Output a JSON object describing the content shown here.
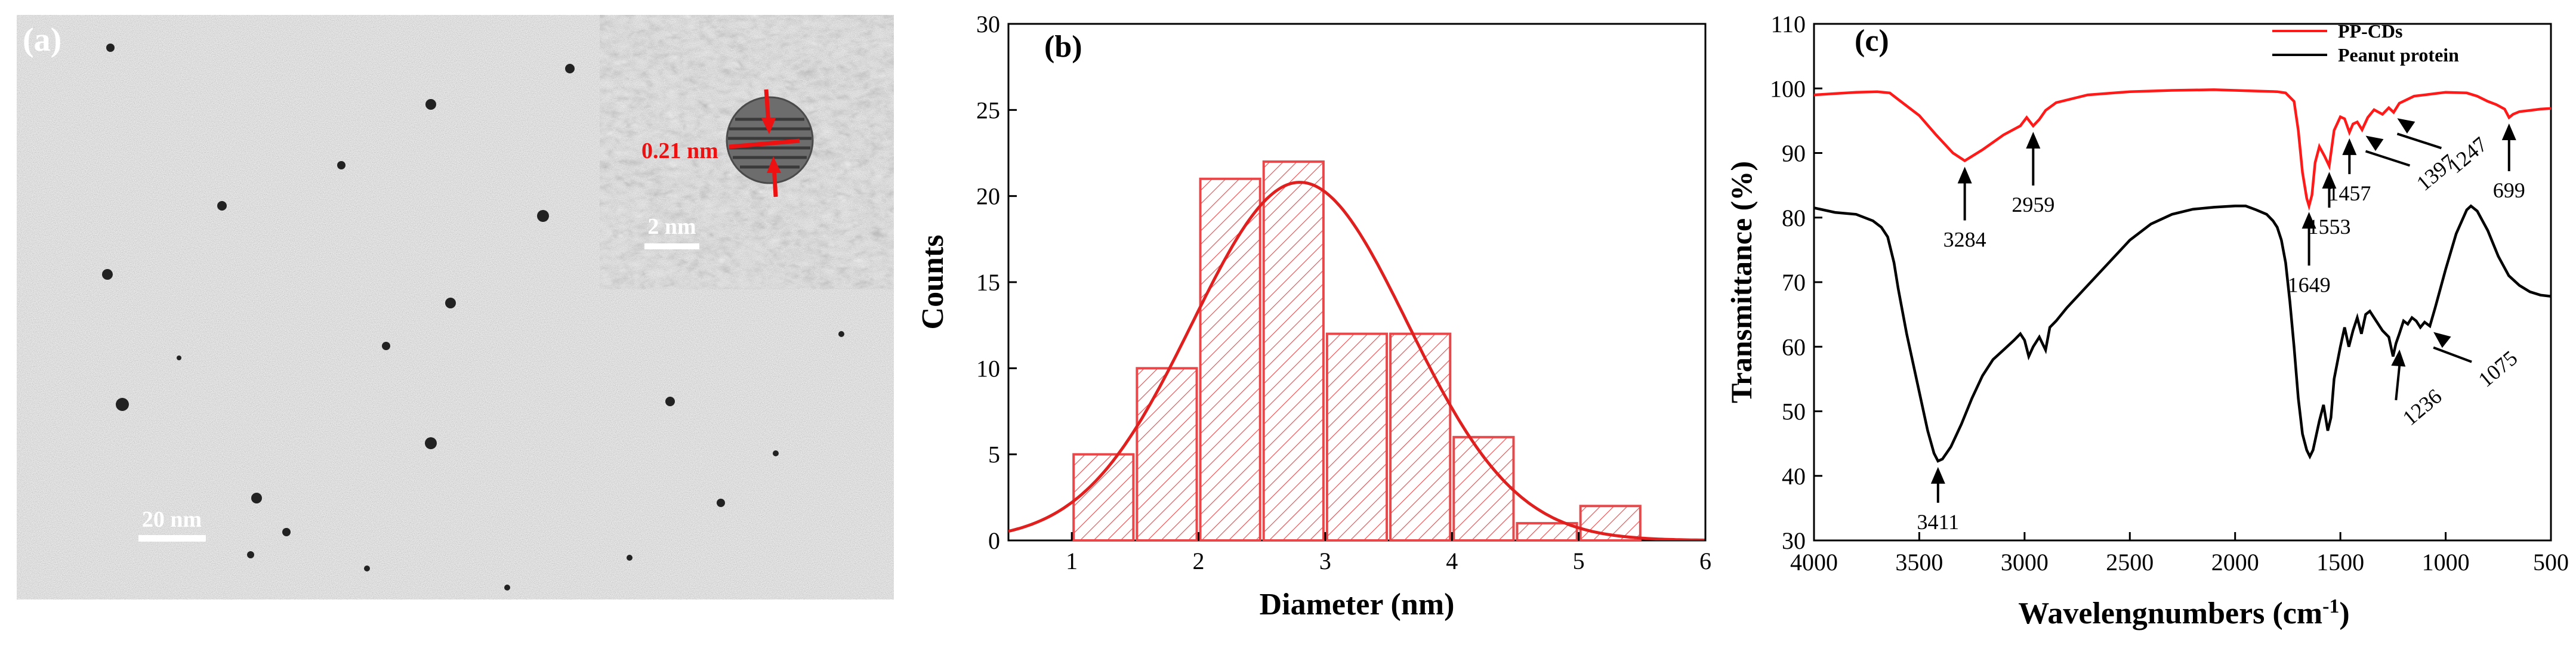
{
  "figure_type": "composite figure",
  "panel_a": {
    "label": "(a)",
    "scale_main": "20 nm",
    "scale_inset": "2 nm",
    "lattice_spacing": "0.21 nm"
  },
  "chart_data": [
    {
      "type": "bar",
      "panel_label": "(b)",
      "xlabel": "Diameter (nm)",
      "ylabel": "Counts",
      "xlim": [
        0.5,
        6
      ],
      "ylim": [
        0,
        30
      ],
      "xticks": [
        "1",
        "2",
        "3",
        "4",
        "5",
        "6"
      ],
      "yticks": [
        "0",
        "5",
        "10",
        "15",
        "20",
        "25",
        "30"
      ],
      "bin_width": 0.5,
      "bin_starts": [
        1.0,
        1.5,
        2.0,
        2.5,
        3.0,
        3.5,
        4.0,
        4.5,
        5.0
      ],
      "values": [
        5,
        10,
        21,
        22,
        12,
        12,
        6,
        1,
        2
      ],
      "fit": {
        "type": "gaussian",
        "peak_x": 2.8,
        "peak_y": 20.8,
        "sigma": 0.85
      },
      "bar_color": "#e8484a",
      "fit_color": "#e0201e"
    },
    {
      "type": "line",
      "panel_label": "(c)",
      "xlabel": "Wavelengnumbers (cm",
      "xlabel_sup": "-1",
      "xlabel_end": ")",
      "ylabel": "Transmittance (%)",
      "xlim": [
        4000,
        500
      ],
      "ylim": [
        30,
        110
      ],
      "xticks": [
        "4000",
        "3500",
        "3000",
        "2500",
        "2000",
        "1500",
        "1000",
        "500"
      ],
      "yticks": [
        "30",
        "40",
        "50",
        "60",
        "70",
        "80",
        "90",
        "100",
        "110"
      ],
      "series": [
        {
          "name": "PP-CDs",
          "color": "#ff1a1a",
          "x": [
            4000,
            3900,
            3800,
            3700,
            3640,
            3600,
            3500,
            3420,
            3340,
            3284,
            3200,
            3100,
            3020,
            2990,
            2959,
            2930,
            2900,
            2850,
            2700,
            2500,
            2300,
            2100,
            2000,
            1900,
            1800,
            1760,
            1720,
            1700,
            1680,
            1660,
            1649,
            1635,
            1620,
            1600,
            1575,
            1553,
            1530,
            1500,
            1480,
            1457,
            1440,
            1420,
            1397,
            1370,
            1340,
            1300,
            1270,
            1247,
            1220,
            1150,
            1050,
            1000,
            900,
            850,
            800,
            760,
            720,
            699,
            680,
            650,
            600,
            550,
            500
          ],
          "y": [
            99.0,
            99.2,
            99.4,
            99.5,
            99.3,
            98.3,
            95.8,
            92.8,
            90.0,
            88.8,
            90.5,
            92.8,
            94.2,
            95.5,
            94.2,
            95.2,
            96.6,
            97.8,
            99.0,
            99.5,
            99.7,
            99.8,
            99.7,
            99.6,
            99.5,
            99.3,
            98.0,
            93.5,
            87.0,
            83.0,
            81.8,
            83.5,
            88.5,
            91.0,
            89.5,
            88.0,
            93.5,
            95.6,
            95.3,
            93.2,
            94.5,
            94.8,
            93.6,
            95.5,
            96.7,
            96.0,
            97.0,
            96.3,
            97.7,
            98.8,
            99.2,
            99.4,
            99.3,
            98.8,
            98.0,
            97.5,
            96.8,
            95.5,
            96.0,
            96.4,
            96.6,
            96.8,
            96.9
          ]
        },
        {
          "name": "Peanut protein",
          "color": "#000000",
          "x": [
            4000,
            3900,
            3800,
            3720,
            3680,
            3650,
            3620,
            3600,
            3560,
            3500,
            3460,
            3430,
            3411,
            3390,
            3350,
            3300,
            3250,
            3200,
            3150,
            3100,
            3050,
            3020,
            3000,
            2980,
            2959,
            2930,
            2900,
            2880,
            2850,
            2800,
            2700,
            2600,
            2500,
            2400,
            2300,
            2200,
            2100,
            2000,
            1950,
            1900,
            1850,
            1820,
            1800,
            1780,
            1760,
            1740,
            1720,
            1700,
            1680,
            1660,
            1645,
            1630,
            1600,
            1580,
            1560,
            1545,
            1530,
            1500,
            1480,
            1460,
            1440,
            1420,
            1400,
            1380,
            1360,
            1330,
            1300,
            1270,
            1250,
            1236,
            1220,
            1200,
            1180,
            1160,
            1140,
            1120,
            1100,
            1075,
            1050,
            1000,
            950,
            900,
            880,
            850,
            800,
            750,
            700,
            650,
            600,
            550,
            500
          ],
          "y": [
            81.5,
            80.8,
            80.5,
            79.5,
            78.5,
            77.0,
            73.0,
            69.0,
            62.0,
            53.0,
            47.0,
            43.5,
            42.3,
            42.6,
            44.5,
            48.0,
            52.0,
            55.5,
            58.0,
            59.5,
            61.0,
            62.0,
            61.0,
            58.5,
            60.0,
            61.5,
            59.5,
            63.0,
            64.0,
            66.0,
            69.5,
            73.0,
            76.5,
            79.0,
            80.5,
            81.3,
            81.6,
            81.8,
            81.8,
            81.2,
            80.5,
            79.5,
            78.5,
            76.5,
            73.0,
            67.0,
            60.0,
            52.0,
            46.5,
            44.0,
            43.0,
            44.0,
            48.5,
            51.0,
            47.0,
            49.0,
            55.0,
            60.0,
            63.0,
            60.0,
            62.5,
            64.5,
            62.0,
            65.0,
            65.5,
            64.0,
            62.5,
            61.5,
            58.5,
            60.5,
            62.0,
            64.0,
            63.5,
            64.5,
            64.0,
            63.0,
            63.8,
            63.2,
            66.0,
            72.0,
            77.5,
            81.2,
            81.8,
            81.0,
            78.0,
            74.0,
            71.0,
            69.5,
            68.5,
            68.0,
            67.8
          ]
        }
      ],
      "annotations": [
        {
          "text": "3284",
          "series": "PP-CDs"
        },
        {
          "text": "2959",
          "series": "PP-CDs"
        },
        {
          "text": "1649",
          "series": "PP-CDs"
        },
        {
          "text": "1553",
          "series": "PP-CDs"
        },
        {
          "text": "1457",
          "series": "PP-CDs"
        },
        {
          "text": "1397",
          "series": "PP-CDs"
        },
        {
          "text": "1247",
          "series": "PP-CDs"
        },
        {
          "text": "699",
          "series": "PP-CDs"
        },
        {
          "text": "3411",
          "series": "Peanut protein"
        },
        {
          "text": "1236",
          "series": "Peanut protein"
        },
        {
          "text": "1075",
          "series": "Peanut protein"
        }
      ],
      "legend_position": "top-right"
    }
  ]
}
